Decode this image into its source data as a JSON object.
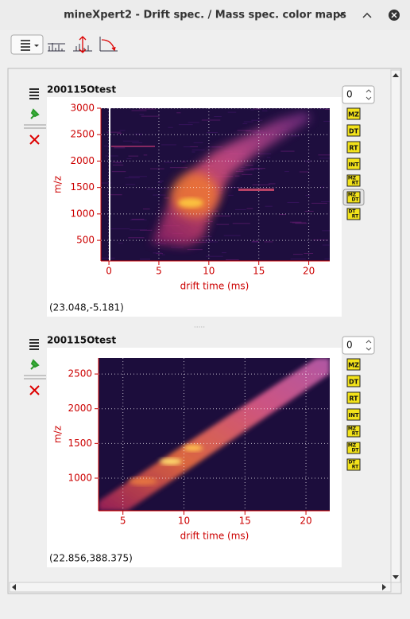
{
  "window": {
    "title": "mineXpert2 - Drift spec. / Mass spec. color maps"
  },
  "chart_data": [
    {
      "type": "heatmap",
      "title": "200115Otest",
      "x_label": "drift time (ms)",
      "y_label": "m/z",
      "xlim": [
        -0.8,
        22.1
      ],
      "ylim": [
        110,
        3000
      ],
      "xticks": [
        0,
        5,
        10,
        15,
        20
      ],
      "yticks": [
        500,
        1000,
        1500,
        2000,
        2500,
        3000
      ],
      "grid": true
    },
    {
      "type": "heatmap",
      "title": "200115Otest",
      "x_label": "drift time (ms)",
      "y_label": "m/z",
      "xlim": [
        3.0,
        21.95
      ],
      "ylim": [
        530,
        2730
      ],
      "xticks": [
        5,
        10,
        15,
        20
      ],
      "yticks": [
        1000,
        1500,
        2000,
        2500
      ],
      "grid": true
    }
  ],
  "panels": [
    {
      "spin_value": 0,
      "coordinates": "(23.048,-5.181)"
    },
    {
      "spin_value": 0,
      "coordinates": "(22.856,388.375)"
    }
  ],
  "tool_icons": [
    [
      "MZ"
    ],
    [
      "DT"
    ],
    [
      "RT"
    ],
    [
      "INT"
    ],
    [
      "MZ",
      "RT"
    ],
    [
      "MZ",
      "DT"
    ],
    [
      "DT",
      "RT"
    ]
  ]
}
